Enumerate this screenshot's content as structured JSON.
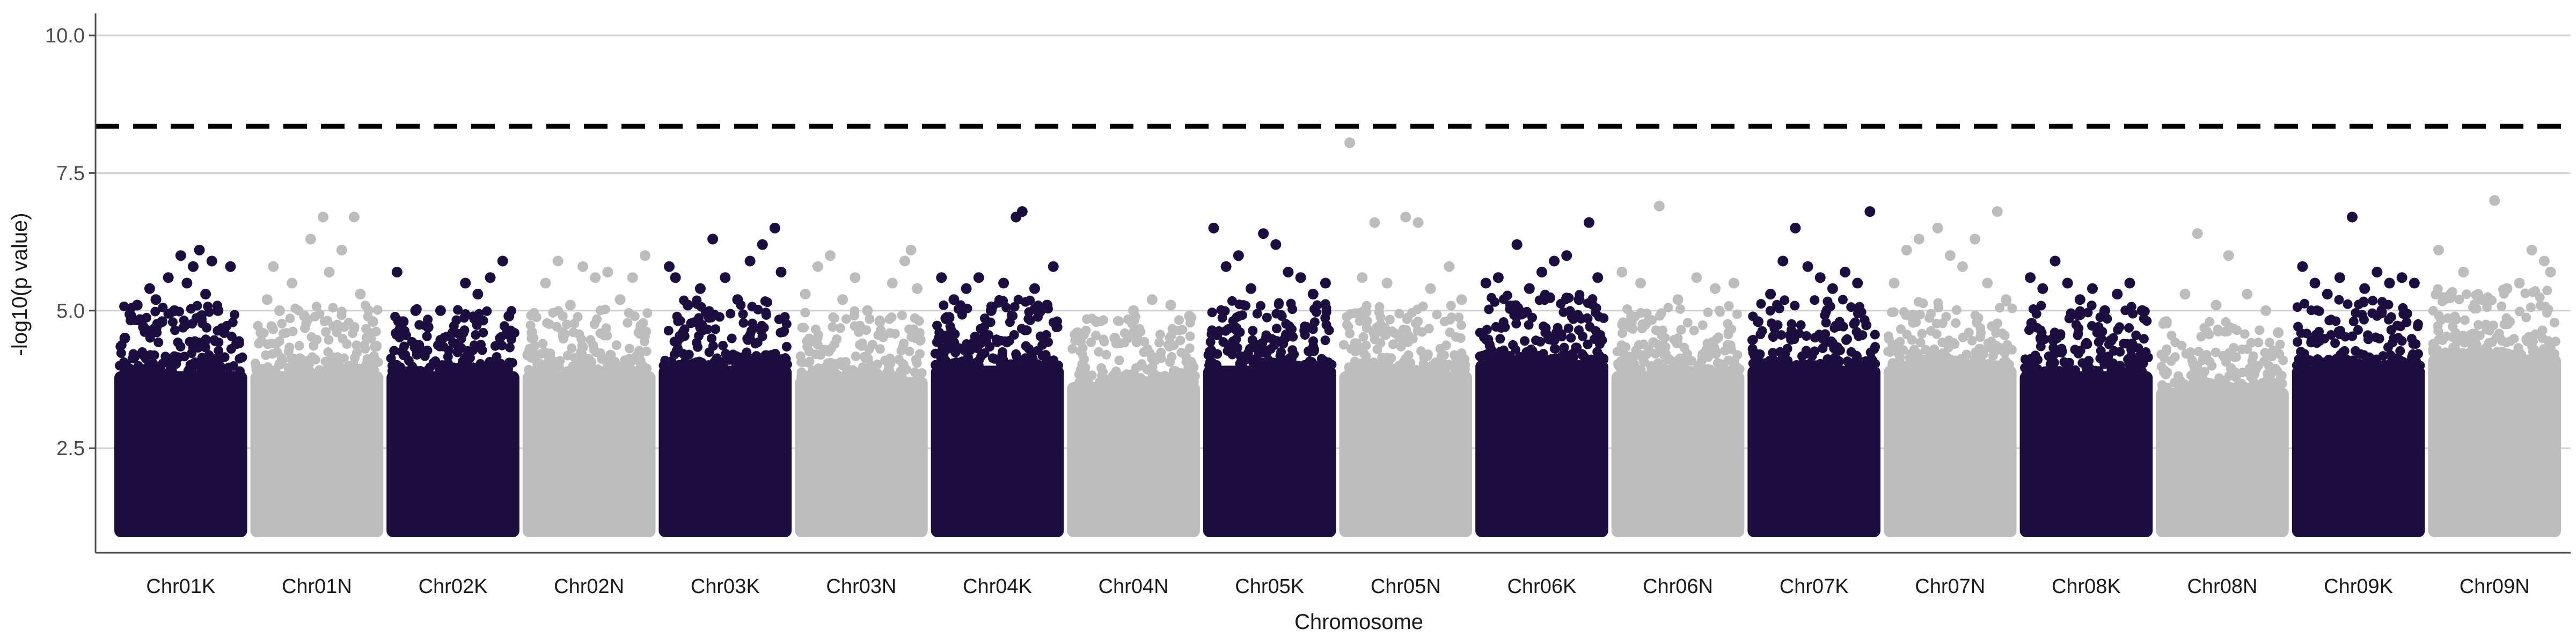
{
  "chart_data": {
    "type": "scatter",
    "title": "",
    "xlabel": "Chromosome",
    "ylabel": "-log10(p value)",
    "ylim": [
      0.6,
      10.4
    ],
    "yticks": [
      2.5,
      5.0,
      7.5,
      10.0
    ],
    "ytick_labels": [
      "2.5",
      "5.0",
      "7.5",
      "10.0"
    ],
    "grid": "horizontal major lines",
    "legend": "none",
    "threshold": {
      "value": 8.35,
      "style": "dashed",
      "color": "#000000"
    },
    "colors": {
      "dark": "#1c0f3f",
      "light": "#bdbdbd",
      "grid": "#d3d3d3",
      "axis": "#4d4d4d"
    },
    "categories": [
      "Chr01K",
      "Chr01N",
      "Chr02K",
      "Chr02N",
      "Chr03K",
      "Chr03N",
      "Chr04K",
      "Chr04N",
      "Chr05K",
      "Chr05N",
      "Chr06K",
      "Chr06N",
      "Chr07K",
      "Chr07N",
      "Chr08K",
      "Chr08N",
      "Chr09K",
      "Chr09N"
    ],
    "series": [
      {
        "chromosome": "Chr01K",
        "color": "dark",
        "bulk_top": 3.9,
        "points": [
          [
            0.05,
            4.5
          ],
          [
            0.1,
            4.9
          ],
          [
            0.15,
            5.1
          ],
          [
            0.2,
            4.7
          ],
          [
            0.25,
            5.4
          ],
          [
            0.3,
            5.2
          ],
          [
            0.35,
            4.8
          ],
          [
            0.4,
            5.6
          ],
          [
            0.45,
            5.0
          ],
          [
            0.5,
            6.0
          ],
          [
            0.55,
            5.5
          ],
          [
            0.6,
            5.8
          ],
          [
            0.65,
            6.1
          ],
          [
            0.7,
            5.3
          ],
          [
            0.75,
            5.9
          ],
          [
            0.8,
            5.0
          ],
          [
            0.85,
            4.6
          ],
          [
            0.9,
            5.8
          ],
          [
            0.95,
            4.4
          ]
        ]
      },
      {
        "chromosome": "Chr01N",
        "color": "light",
        "bulk_top": 3.9,
        "points": [
          [
            0.05,
            4.6
          ],
          [
            0.1,
            5.2
          ],
          [
            0.15,
            5.8
          ],
          [
            0.2,
            5.0
          ],
          [
            0.3,
            5.5
          ],
          [
            0.4,
            4.9
          ],
          [
            0.45,
            6.3
          ],
          [
            0.55,
            6.7
          ],
          [
            0.6,
            5.7
          ],
          [
            0.7,
            6.1
          ],
          [
            0.8,
            6.7
          ],
          [
            0.85,
            5.3
          ],
          [
            0.95,
            4.8
          ]
        ]
      },
      {
        "chromosome": "Chr02K",
        "color": "dark",
        "bulk_top": 3.9,
        "points": [
          [
            0.05,
            5.7
          ],
          [
            0.1,
            4.8
          ],
          [
            0.2,
            5.0
          ],
          [
            0.3,
            4.7
          ],
          [
            0.4,
            5.0
          ],
          [
            0.5,
            4.6
          ],
          [
            0.6,
            5.5
          ],
          [
            0.7,
            5.3
          ],
          [
            0.8,
            5.6
          ],
          [
            0.9,
            5.9
          ],
          [
            0.95,
            4.9
          ]
        ]
      },
      {
        "chromosome": "Chr02N",
        "color": "light",
        "bulk_top": 3.9,
        "points": [
          [
            0.05,
            4.5
          ],
          [
            0.15,
            5.5
          ],
          [
            0.25,
            5.9
          ],
          [
            0.35,
            5.1
          ],
          [
            0.45,
            5.8
          ],
          [
            0.55,
            5.6
          ],
          [
            0.65,
            5.7
          ],
          [
            0.75,
            5.2
          ],
          [
            0.85,
            5.6
          ],
          [
            0.95,
            6.0
          ]
        ]
      },
      {
        "chromosome": "Chr03K",
        "color": "dark",
        "bulk_top": 4.0,
        "points": [
          [
            0.05,
            5.8
          ],
          [
            0.1,
            5.6
          ],
          [
            0.2,
            5.1
          ],
          [
            0.3,
            5.4
          ],
          [
            0.4,
            6.3
          ],
          [
            0.5,
            5.6
          ],
          [
            0.6,
            5.2
          ],
          [
            0.7,
            5.9
          ],
          [
            0.8,
            6.2
          ],
          [
            0.9,
            6.5
          ],
          [
            0.95,
            5.7
          ]
        ]
      },
      {
        "chromosome": "Chr03N",
        "color": "light",
        "bulk_top": 3.8,
        "points": [
          [
            0.05,
            5.3
          ],
          [
            0.15,
            5.8
          ],
          [
            0.25,
            6.0
          ],
          [
            0.35,
            5.2
          ],
          [
            0.45,
            5.6
          ],
          [
            0.55,
            5.0
          ],
          [
            0.65,
            4.8
          ],
          [
            0.75,
            5.5
          ],
          [
            0.85,
            5.9
          ],
          [
            0.9,
            6.1
          ],
          [
            0.95,
            5.4
          ]
        ]
      },
      {
        "chromosome": "Chr04K",
        "color": "dark",
        "bulk_top": 4.0,
        "points": [
          [
            0.05,
            5.6
          ],
          [
            0.15,
            5.2
          ],
          [
            0.25,
            5.4
          ],
          [
            0.35,
            5.6
          ],
          [
            0.45,
            5.0
          ],
          [
            0.55,
            5.5
          ],
          [
            0.65,
            6.7
          ],
          [
            0.7,
            6.8
          ],
          [
            0.8,
            5.4
          ],
          [
            0.9,
            5.1
          ],
          [
            0.95,
            5.8
          ]
        ]
      },
      {
        "chromosome": "Chr04N",
        "color": "light",
        "bulk_top": 3.7,
        "points": [
          [
            0.05,
            4.6
          ],
          [
            0.2,
            4.8
          ],
          [
            0.35,
            4.5
          ],
          [
            0.5,
            5.0
          ],
          [
            0.65,
            5.2
          ],
          [
            0.8,
            5.1
          ],
          [
            0.95,
            4.9
          ]
        ]
      },
      {
        "chromosome": "Chr05K",
        "color": "dark",
        "bulk_top": 4.0,
        "points": [
          [
            0.05,
            6.5
          ],
          [
            0.15,
            5.8
          ],
          [
            0.25,
            6.0
          ],
          [
            0.35,
            5.4
          ],
          [
            0.45,
            6.4
          ],
          [
            0.55,
            6.2
          ],
          [
            0.65,
            5.7
          ],
          [
            0.75,
            5.6
          ],
          [
            0.85,
            5.3
          ],
          [
            0.95,
            5.5
          ]
        ]
      },
      {
        "chromosome": "Chr05N",
        "color": "light",
        "bulk_top": 3.9,
        "points": [
          [
            0.05,
            8.05
          ],
          [
            0.15,
            5.6
          ],
          [
            0.25,
            6.6
          ],
          [
            0.35,
            5.5
          ],
          [
            0.5,
            6.7
          ],
          [
            0.6,
            6.6
          ],
          [
            0.7,
            5.4
          ],
          [
            0.85,
            5.8
          ],
          [
            0.95,
            5.2
          ]
        ]
      },
      {
        "chromosome": "Chr06K",
        "color": "dark",
        "bulk_top": 4.1,
        "points": [
          [
            0.05,
            5.5
          ],
          [
            0.15,
            5.6
          ],
          [
            0.3,
            6.2
          ],
          [
            0.4,
            5.4
          ],
          [
            0.5,
            5.7
          ],
          [
            0.6,
            5.9
          ],
          [
            0.7,
            6.0
          ],
          [
            0.8,
            5.2
          ],
          [
            0.88,
            6.6
          ],
          [
            0.95,
            5.6
          ]
        ]
      },
      {
        "chromosome": "Chr06N",
        "color": "light",
        "bulk_top": 3.9,
        "points": [
          [
            0.05,
            5.7
          ],
          [
            0.2,
            5.5
          ],
          [
            0.35,
            6.9
          ],
          [
            0.5,
            5.2
          ],
          [
            0.65,
            5.6
          ],
          [
            0.8,
            5.4
          ],
          [
            0.95,
            5.5
          ]
        ]
      },
      {
        "chromosome": "Chr07K",
        "color": "dark",
        "bulk_top": 4.0,
        "points": [
          [
            0.05,
            4.8
          ],
          [
            0.15,
            5.3
          ],
          [
            0.25,
            5.9
          ],
          [
            0.35,
            6.5
          ],
          [
            0.45,
            5.8
          ],
          [
            0.55,
            5.6
          ],
          [
            0.65,
            5.4
          ],
          [
            0.75,
            5.7
          ],
          [
            0.85,
            5.5
          ],
          [
            0.95,
            6.8
          ]
        ]
      },
      {
        "chromosome": "Chr07N",
        "color": "light",
        "bulk_top": 4.0,
        "points": [
          [
            0.05,
            5.5
          ],
          [
            0.15,
            6.1
          ],
          [
            0.25,
            6.3
          ],
          [
            0.4,
            6.5
          ],
          [
            0.5,
            6.0
          ],
          [
            0.6,
            5.8
          ],
          [
            0.7,
            6.3
          ],
          [
            0.8,
            5.5
          ],
          [
            0.88,
            6.8
          ],
          [
            0.95,
            5.2
          ]
        ]
      },
      {
        "chromosome": "Chr08K",
        "color": "dark",
        "bulk_top": 3.9,
        "points": [
          [
            0.05,
            5.6
          ],
          [
            0.15,
            5.4
          ],
          [
            0.25,
            5.9
          ],
          [
            0.35,
            5.5
          ],
          [
            0.45,
            5.2
          ],
          [
            0.55,
            5.4
          ],
          [
            0.65,
            5.0
          ],
          [
            0.75,
            5.3
          ],
          [
            0.85,
            5.5
          ],
          [
            0.95,
            5.0
          ]
        ]
      },
      {
        "chromosome": "Chr08N",
        "color": "light",
        "bulk_top": 3.6,
        "points": [
          [
            0.05,
            4.8
          ],
          [
            0.2,
            5.3
          ],
          [
            0.3,
            6.4
          ],
          [
            0.45,
            5.1
          ],
          [
            0.55,
            6.0
          ],
          [
            0.7,
            5.3
          ],
          [
            0.85,
            5.0
          ],
          [
            0.95,
            4.6
          ]
        ]
      },
      {
        "chromosome": "Chr09K",
        "color": "dark",
        "bulk_top": 4.0,
        "points": [
          [
            0.05,
            5.8
          ],
          [
            0.15,
            5.5
          ],
          [
            0.25,
            5.3
          ],
          [
            0.35,
            5.6
          ],
          [
            0.45,
            6.7
          ],
          [
            0.55,
            5.4
          ],
          [
            0.65,
            5.7
          ],
          [
            0.75,
            5.5
          ],
          [
            0.85,
            5.6
          ],
          [
            0.95,
            5.5
          ]
        ]
      },
      {
        "chromosome": "Chr09N",
        "color": "light",
        "bulk_top": 4.2,
        "points": [
          [
            0.05,
            6.1
          ],
          [
            0.15,
            5.3
          ],
          [
            0.25,
            5.7
          ],
          [
            0.4,
            5.2
          ],
          [
            0.5,
            7.0
          ],
          [
            0.6,
            5.4
          ],
          [
            0.7,
            5.5
          ],
          [
            0.8,
            6.1
          ],
          [
            0.9,
            5.9
          ],
          [
            0.95,
            5.7
          ]
        ]
      }
    ]
  }
}
